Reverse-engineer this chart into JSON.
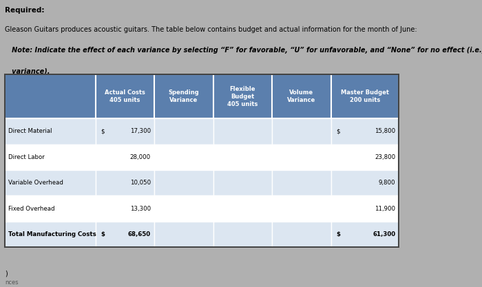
{
  "title_line1": "Required:",
  "title_line2": "Gleason Guitars produces acoustic guitars. The table below contains budget and actual information for the month of June:",
  "title_line3": "Note: Indicate the effect of each variance by selecting F for favorable, U for unfavorable, and None for no effect (i.e., zero",
  "title_line3b": "variance).",
  "col_headers": [
    "Actual Costs\n405 units",
    "Spending\nVariance",
    "Flexible\nBudget\n405 units",
    "Volume\nVariance",
    "Master Budget\n200 units"
  ],
  "row_labels": [
    "Direct Material",
    "Direct Labor",
    "Variable Overhead",
    "Fixed Overhead",
    "Total Manufacturing Costs"
  ],
  "actual_dollar": [
    "$",
    "",
    "",
    "",
    "$"
  ],
  "actual_costs": [
    "17,300",
    "28,000",
    "10,050",
    "13,300",
    "68,650"
  ],
  "master_dollar": [
    "$",
    "",
    "",
    "",
    "$"
  ],
  "master_budget": [
    "15,800",
    "23,800",
    "9,800",
    "11,900",
    "61,300"
  ],
  "header_bg": "#5b7fad",
  "header_text": "#ffffff",
  "row_bg_even": "#dce6f1",
  "row_bg_odd": "#ffffff",
  "total_row_bg": "#dce6f1",
  "border_color": "#ffffff",
  "text_color": "#000000",
  "page_bg": "#b0b0b0"
}
